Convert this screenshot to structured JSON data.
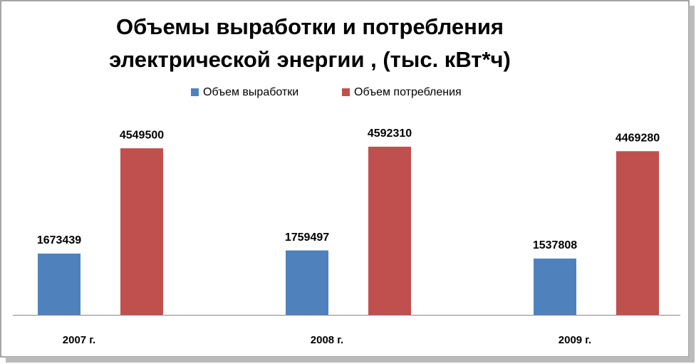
{
  "chart_data": {
    "type": "bar",
    "title": [
      "Объемы выработки и потребления",
      "электрической энергии , (тыс. кВт*ч)"
    ],
    "categories": [
      "2007 г.",
      "2008 г.",
      "2009 г."
    ],
    "series": [
      {
        "name": "Объем выработки",
        "color": "#4f81bd",
        "values": [
          1673439,
          1759497,
          1537808
        ]
      },
      {
        "name": "Объем потребления",
        "color": "#c0504d",
        "values": [
          4549500,
          4592310,
          4469280
        ]
      }
    ],
    "ylim": [
      0,
      5000000
    ]
  }
}
